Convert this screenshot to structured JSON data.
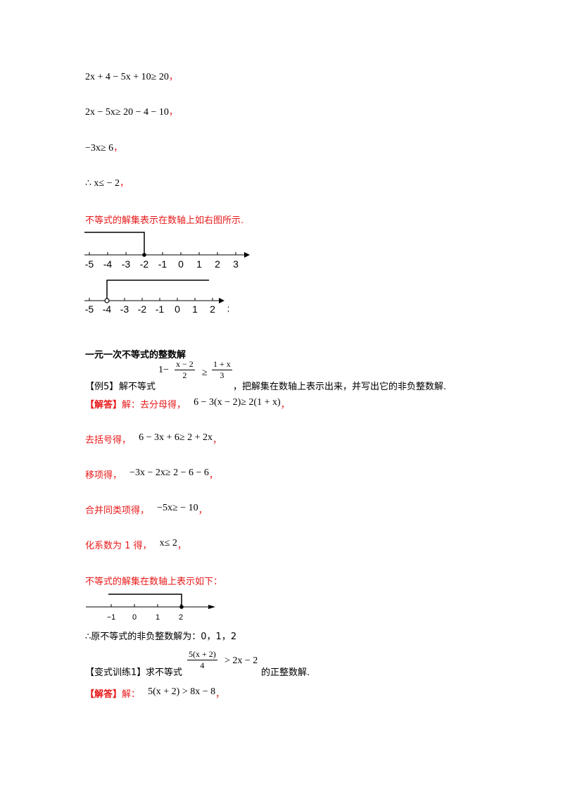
{
  "lines": {
    "l1": "2x + 4 − 5x + 10≥ 20",
    "l2": "2x − 5x≥ 20 − 4 − 10",
    "l3": "−3x≥ 6",
    "l4": "∴ x≤ − 2",
    "comma": "，"
  },
  "section1": {
    "note": "不等式的解集表示在数轴上如右图所示."
  },
  "numberline1": {
    "ticks": [
      "-5",
      "-4",
      "-3",
      "-2",
      "-1",
      "0",
      "1",
      "2",
      "3"
    ],
    "solution_endpoint": -2,
    "endpoint_closed": true,
    "direction": "left"
  },
  "numberline2": {
    "ticks": [
      "-5",
      "-4",
      "-3",
      "-2",
      "-1",
      "0",
      "1",
      "2",
      "3"
    ],
    "solution_endpoint": -4,
    "endpoint_closed": false,
    "direction": "right"
  },
  "section2": {
    "heading": "一元一次不等式的整数解",
    "example_tag": "【例5】",
    "example_prefix": "解不等式",
    "ineq_left_const": "1−",
    "frac1_num": "x − 2",
    "frac1_den": "2",
    "ineq_sign": "≥",
    "frac2_num": "1 + x",
    "frac2_den": "3",
    "example_suffix": "，把解集在数轴上表示出来，并写出它的非负整数解.",
    "answer_tag": "【解答】",
    "step1_label": "解：去分母得，",
    "step1_math": "6 − 3(x − 2)≥ 2(1 + x)",
    "step2_label": "去括号得，",
    "step2_math": "6 − 3x + 6≥ 2 + 2x",
    "step3_label": "移项得，",
    "step3_math": "−3x − 2x≥ 2 − 6 − 6",
    "step4_label": "合并同类项得，",
    "step4_math": "−5x≥ − 10",
    "step5_label": "化系数为 1 得，",
    "step5_math": "x≤ 2",
    "note": "不等式的解集在数轴上表示如下："
  },
  "numberline3": {
    "ticks": [
      "−1",
      "0",
      "1",
      "2"
    ],
    "solution_endpoint": 2,
    "endpoint_closed": true,
    "direction": "left"
  },
  "section3": {
    "conclusion": "∴原不等式的非负整数解为：0，1，2",
    "variant_tag": "【变式训练1】",
    "variant_prefix": "求不等式",
    "frac_num": "5(x + 2)",
    "frac_den": "4",
    "variant_ineq": "> 2x − 2",
    "variant_suffix": "的正整数解.",
    "answer_tag": "【解答】",
    "answer_label": "解：",
    "answer_math": "5(x + 2) > 8x − 8"
  }
}
